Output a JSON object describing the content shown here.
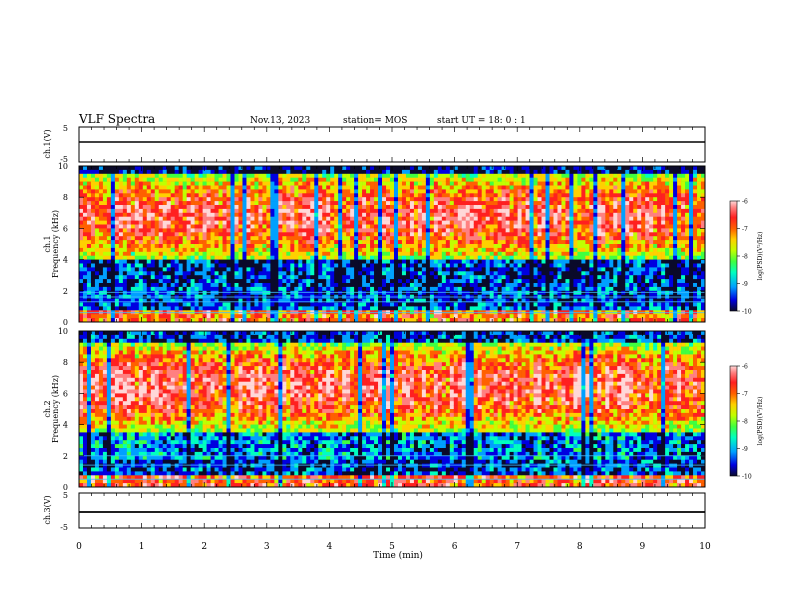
{
  "header": {
    "title": "VLF Spectra",
    "date": "Nov.13, 2023",
    "station": "station= MOS",
    "start": "start UT = 18: 0 : 1"
  },
  "colors": {
    "scale": [
      "#0a0a2a",
      "#0000e0",
      "#00a0ff",
      "#00ffc0",
      "#40ff40",
      "#c0ff00",
      "#ffd000",
      "#ff6000",
      "#ff2020",
      "#ff8080",
      "#ffd8d8"
    ]
  },
  "chart_data": [
    {
      "type": "line",
      "panel": "ch1-voltage",
      "ylabel": "ch.1(V)",
      "yticks": [
        "5",
        "-5"
      ],
      "ylim": [
        -5,
        5
      ],
      "xlim": [
        0,
        10
      ],
      "series": [
        {
          "values": [
            0
          ]
        }
      ]
    },
    {
      "type": "heatmap",
      "panel": "ch1-spectrogram",
      "ylabel_channel": "ch.1",
      "ylabel": "Frequency (kHz)",
      "yticks": [
        "0",
        "2",
        "4",
        "6",
        "8",
        "10"
      ],
      "ylim": [
        0,
        10
      ],
      "xlim": [
        0,
        10
      ],
      "colorbar": {
        "label": "log(PSD)(V²/Hz)",
        "ticks": [
          "-6",
          "-7",
          "-8",
          "-9",
          "-10"
        ],
        "range": [
          -10,
          -6
        ]
      }
    },
    {
      "type": "heatmap",
      "panel": "ch2-spectrogram",
      "ylabel_channel": "ch.2",
      "ylabel": "Frequency (kHz)",
      "yticks": [
        "0",
        "2",
        "4",
        "6",
        "8",
        "10"
      ],
      "ylim": [
        0,
        10
      ],
      "xlim": [
        0,
        10
      ],
      "colorbar": {
        "label": "log(PSD)(V²/Hz)",
        "ticks": [
          "-6",
          "-7",
          "-8",
          "-9",
          "-10"
        ],
        "range": [
          -10,
          -6
        ]
      }
    },
    {
      "type": "line",
      "panel": "ch3-voltage",
      "ylabel": "ch.3(V)",
      "yticks": [
        "5",
        "-5"
      ],
      "ylim": [
        -5,
        5
      ],
      "xlim": [
        0,
        10
      ],
      "series": [
        {
          "values": [
            0
          ]
        }
      ]
    }
  ],
  "xaxis": {
    "label": "Time (min)",
    "ticks": [
      "0",
      "1",
      "2",
      "3",
      "4",
      "5",
      "6",
      "7",
      "8",
      "9",
      "10"
    ]
  }
}
